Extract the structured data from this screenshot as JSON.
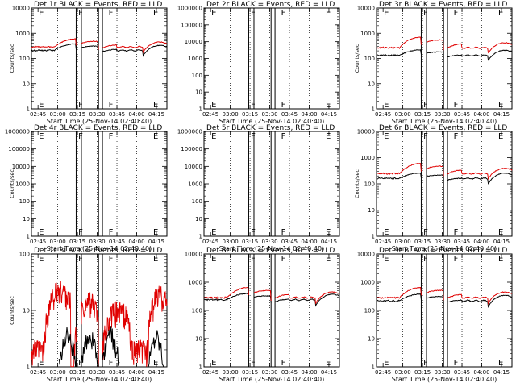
{
  "chart_data": [
    {
      "type": "line",
      "title": "Det 1r BLACK = Events, RED = LLD",
      "xlabel": "Start Time (25-Nov-14 02:40:40)",
      "ylabel": "Counts/sec",
      "yscale": "log",
      "ylim": [
        1,
        10000
      ],
      "yticks": [
        "1",
        "10",
        "100",
        "1000",
        "10000"
      ],
      "xticks": [
        "02:45",
        "03:00",
        "03:15",
        "03:30",
        "03:45",
        "04:00",
        "04:15"
      ],
      "markers": [
        {
          "label": "E",
          "t": 0
        },
        {
          "label": "F",
          "t": 30
        },
        {
          "label": "F",
          "t": 53
        },
        {
          "label": "E",
          "t": 87
        }
      ],
      "pattern": "arch",
      "red_level": 300,
      "red_peak": 600,
      "black_level": 220,
      "black_peak": 380
    },
    {
      "type": "line",
      "title": "Det 2r BLACK = Events, RED = LLD",
      "xlabel": "Start Time (25-Nov-14 02:40:40)",
      "ylabel": "",
      "yscale": "log",
      "ylim": [
        1,
        1000000
      ],
      "yticks": [
        "1",
        "10",
        "100",
        "1000",
        "10000",
        "100000",
        "1000000"
      ],
      "xticks": [
        "02:45",
        "03:00",
        "03:15",
        "03:30",
        "03:45",
        "04:00",
        "04:15"
      ],
      "markers": [
        {
          "label": "E",
          "t": 0
        },
        {
          "label": "F",
          "t": 30
        },
        {
          "label": "F",
          "t": 53
        },
        {
          "label": "E",
          "t": 87
        }
      ],
      "pattern": "none"
    },
    {
      "type": "line",
      "title": "Det 3r BLACK = Events, RED = LLD",
      "xlabel": "Start Time (25-Nov-14 02:40:40)",
      "ylabel": "Counts/sec",
      "yscale": "log",
      "ylim": [
        1,
        10000
      ],
      "yticks": [
        "1",
        "10",
        "100",
        "1000",
        "10000"
      ],
      "xticks": [
        "02:45",
        "03:00",
        "03:15",
        "03:30",
        "03:45",
        "04:00",
        "04:15"
      ],
      "markers": [
        {
          "label": "E",
          "t": 0
        },
        {
          "label": "F",
          "t": 30
        },
        {
          "label": "F",
          "t": 53
        },
        {
          "label": "E",
          "t": 87
        }
      ],
      "pattern": "arch",
      "red_level": 280,
      "red_peak": 700,
      "black_level": 140,
      "black_peak": 220
    },
    {
      "type": "line",
      "title": "Det 4r BLACK = Events, RED = LLD",
      "xlabel": "Start Time (25-Nov-14 02:40:40)",
      "ylabel": "Counts/sec",
      "yscale": "log",
      "ylim": [
        1,
        1000000
      ],
      "yticks": [
        "1",
        "10",
        "100",
        "1000",
        "10000",
        "100000",
        "1000000"
      ],
      "xticks": [
        "02:45",
        "03:00",
        "03:15",
        "03:30",
        "03:45",
        "04:00",
        "04:15"
      ],
      "markers": [
        {
          "label": "E",
          "t": 0
        },
        {
          "label": "F",
          "t": 30
        },
        {
          "label": "F",
          "t": 53
        },
        {
          "label": "E",
          "t": 87
        }
      ],
      "pattern": "none"
    },
    {
      "type": "line",
      "title": "Det 5r BLACK = Events, RED = LLD",
      "xlabel": "Start Time (25-Nov-14 02:40:40)",
      "ylabel": "",
      "yscale": "log",
      "ylim": [
        1,
        1000000
      ],
      "yticks": [
        "1",
        "10",
        "100",
        "1000",
        "10000",
        "100000",
        "1000000"
      ],
      "xticks": [
        "02:45",
        "03:00",
        "03:15",
        "03:30",
        "03:45",
        "04:00",
        "04:15"
      ],
      "markers": [
        {
          "label": "E",
          "t": 0
        },
        {
          "label": "F",
          "t": 30
        },
        {
          "label": "F",
          "t": 53
        },
        {
          "label": "E",
          "t": 87
        }
      ],
      "pattern": "none"
    },
    {
      "type": "line",
      "title": "Det 6r BLACK = Events, RED = LLD",
      "xlabel": "Start Time (25-Nov-14 02:40:40)",
      "ylabel": "Counts/sec",
      "yscale": "log",
      "ylim": [
        1,
        10000
      ],
      "yticks": [
        "1",
        "10",
        "100",
        "1000",
        "10000"
      ],
      "xticks": [
        "02:45",
        "03:00",
        "03:15",
        "03:30",
        "03:45",
        "04:00",
        "04:15"
      ],
      "markers": [
        {
          "label": "E",
          "t": 0
        },
        {
          "label": "F",
          "t": 30
        },
        {
          "label": "F",
          "t": 53
        },
        {
          "label": "E",
          "t": 87
        }
      ],
      "pattern": "arch",
      "red_level": 260,
      "red_peak": 600,
      "black_level": 170,
      "black_peak": 260
    },
    {
      "type": "line",
      "title": "Det 7r BLACK = Events, RED = LLD",
      "xlabel": "Start Time (25-Nov-14 02:40:40)",
      "ylabel": "Counts/sec",
      "yscale": "log",
      "ylim": [
        1,
        100
      ],
      "yticks": [
        "1",
        "10",
        "100"
      ],
      "xticks": [
        "02:45",
        "03:00",
        "03:15",
        "03:30",
        "03:45",
        "04:00",
        "04:15"
      ],
      "markers": [
        {
          "label": "E",
          "t": 0
        },
        {
          "label": "F",
          "t": 30
        },
        {
          "label": "F",
          "t": 53
        },
        {
          "label": "E",
          "t": 87
        }
      ],
      "pattern": "noisy"
    },
    {
      "type": "line",
      "title": "Det 8r BLACK = Events, RED = LLD",
      "xlabel": "Start Time (25-Nov-14 02:40:40)",
      "ylabel": "",
      "yscale": "log",
      "ylim": [
        1,
        10000
      ],
      "yticks": [
        "1",
        "10",
        "100",
        "1000",
        "10000"
      ],
      "xticks": [
        "02:45",
        "03:00",
        "03:15",
        "03:30",
        "03:45",
        "04:00",
        "04:15"
      ],
      "markers": [
        {
          "label": "E",
          "t": 0
        },
        {
          "label": "F",
          "t": 30
        },
        {
          "label": "F",
          "t": 53
        },
        {
          "label": "E",
          "t": 87
        }
      ],
      "pattern": "arch",
      "red_level": 300,
      "red_peak": 650,
      "black_level": 250,
      "black_peak": 400
    },
    {
      "type": "line",
      "title": "Det 9r BLACK = Events, RED = LLD",
      "xlabel": "Start Time (25-Nov-14 02:40:40)",
      "ylabel": "",
      "yscale": "log",
      "ylim": [
        1,
        10000
      ],
      "yticks": [
        "1",
        "10",
        "100",
        "1000",
        "10000"
      ],
      "xticks": [
        "02:45",
        "03:00",
        "03:15",
        "03:30",
        "03:45",
        "04:00",
        "04:15"
      ],
      "markers": [
        {
          "label": "E",
          "t": 0
        },
        {
          "label": "F",
          "t": 30
        },
        {
          "label": "F",
          "t": 53
        },
        {
          "label": "E",
          "t": 87
        }
      ],
      "pattern": "arch",
      "red_level": 300,
      "red_peak": 650,
      "black_level": 230,
      "black_peak": 380
    }
  ],
  "colors": {
    "events": "#000000",
    "lld": "#e00000"
  }
}
